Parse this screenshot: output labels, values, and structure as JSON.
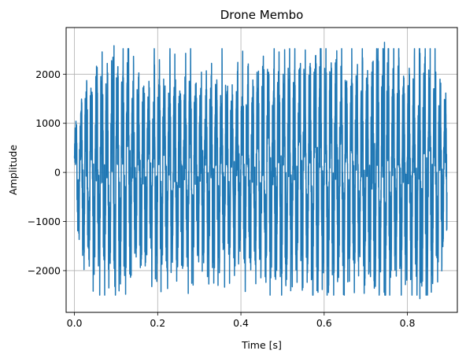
{
  "chart_data": {
    "type": "line",
    "title": "Drone Membo",
    "xlabel": "Time [s]",
    "ylabel": "Amplitude",
    "xlim": [
      -0.02,
      0.92
    ],
    "ylim": [
      -2850,
      2950
    ],
    "x_ticks": [
      0.0,
      0.2,
      0.4,
      0.6,
      0.8
    ],
    "x_tick_labels": [
      "0.0",
      "0.2",
      "0.4",
      "0.6",
      "0.8"
    ],
    "y_ticks": [
      -2000,
      -1000,
      0,
      1000,
      2000
    ],
    "y_tick_labels": [
      "−2000",
      "−1000",
      "0",
      "1000",
      "2000"
    ],
    "grid": true,
    "series": [
      {
        "color": "#1f77b4",
        "signal": {
          "t_start": 0.0,
          "t_end": 0.895,
          "fundamental_hz": 80,
          "envelope_peak": [
            [
              0.0,
              900
            ],
            [
              0.02,
              1850
            ],
            [
              0.1,
              2450
            ],
            [
              0.18,
              1900
            ],
            [
              0.2,
              2150
            ],
            [
              0.3,
              2000
            ],
            [
              0.4,
              1950
            ],
            [
              0.5,
              2300
            ],
            [
              0.6,
              2350
            ],
            [
              0.7,
              2300
            ],
            [
              0.75,
              2600
            ],
            [
              0.8,
              2150
            ],
            [
              0.85,
              2500
            ],
            [
              0.895,
              1600
            ]
          ],
          "extremes": [
            {
              "t": 0.095,
              "value": 2580
            },
            {
              "t": 0.745,
              "value": 2650
            },
            {
              "t": 0.83,
              "value": -2570
            },
            {
              "t": 0.045,
              "value": -2420
            }
          ]
        }
      }
    ]
  }
}
